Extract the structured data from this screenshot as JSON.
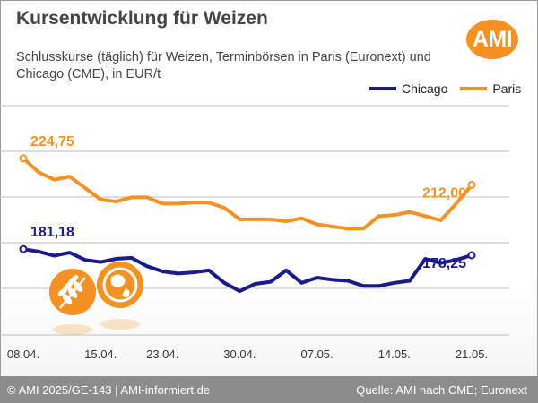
{
  "header": {
    "title": "Kursentwicklung für Weizen",
    "subtitle": "Schlusskurse (täglich) für Weizen, Terminbörsen in Paris (Euronext) und Chicago (CME), in EUR/t",
    "logo_text": "AMI"
  },
  "footer": {
    "left": "© AMI 2025/GE-143 | AMI-informiert.de",
    "right": "Quelle: AMI nach CME; Euronext"
  },
  "colors": {
    "chicago": "#1a1a8c",
    "paris": "#f39222",
    "grid": "#bdbdbd",
    "footer": "#8c8c8c",
    "paris_label": "#f39222",
    "chicago_label": "#1a1a8c"
  },
  "icons": [
    "wheat-icon",
    "globe-icon"
  ],
  "chart_data": {
    "type": "line",
    "title": "Kursentwicklung für Weizen",
    "xlabel": "",
    "ylabel": "",
    "ylim": [
      140,
      250
    ],
    "grid": true,
    "legend_position": "top-right",
    "x": [
      "08.04.",
      "09.04.",
      "10.04.",
      "11.04.",
      "14.04.",
      "15.04.",
      "16.04.",
      "17.04.",
      "22.04.",
      "23.04.",
      "24.04.",
      "25.04.",
      "28.04.",
      "29.04.",
      "30.04.",
      "01.05.",
      "02.05.",
      "05.05.",
      "06.05.",
      "07.05.",
      "08.05.",
      "09.05.",
      "12.05.",
      "13.05.",
      "14.05.",
      "15.05.",
      "16.05.",
      "19.05.",
      "20.05.",
      "21.05."
    ],
    "tick_labels": [
      "08.04.",
      "15.04.",
      "23.04.",
      "30.04.",
      "07.05.",
      "14.05.",
      "21.05."
    ],
    "tick_indices": [
      0,
      5,
      9,
      14,
      19,
      24,
      29
    ],
    "series": [
      {
        "name": "Chicago",
        "color": "#1a1a8c",
        "values": [
          181.18,
          180.0,
          178.0,
          179.5,
          176.0,
          175.0,
          176.5,
          177.0,
          173.0,
          170.5,
          169.5,
          170.0,
          171.0,
          165.0,
          161.0,
          164.5,
          165.5,
          171.0,
          165.0,
          167.5,
          166.5,
          166.0,
          163.5,
          163.5,
          165.0,
          166.0,
          176.5,
          174.5,
          176.0,
          178.25
        ],
        "first_label": "181,18",
        "last_label": "178,25"
      },
      {
        "name": "Paris",
        "color": "#f39222",
        "values": [
          224.75,
          218.0,
          214.5,
          216.0,
          210.5,
          205.0,
          204.0,
          206.0,
          206.0,
          203.0,
          203.0,
          203.5,
          203.5,
          201.0,
          195.5,
          195.5,
          195.5,
          194.5,
          196.0,
          193.0,
          192.0,
          191.0,
          191.0,
          197.0,
          197.5,
          199.0,
          197.0,
          195.0,
          203.0,
          212.0
        ],
        "first_label": "224,75",
        "last_label": "212,00"
      }
    ]
  }
}
